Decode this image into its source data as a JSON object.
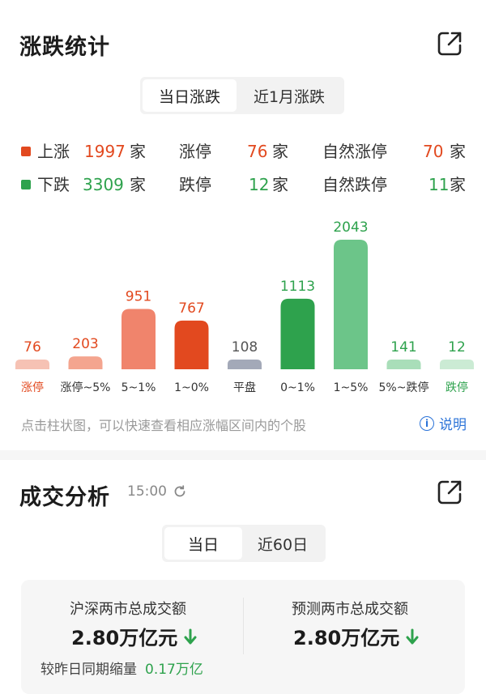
{
  "rise_fall": {
    "title": "涨跌统计",
    "tabs": [
      {
        "label": "当日涨跌",
        "active": true
      },
      {
        "label": "近1月涨跌",
        "active": false
      }
    ],
    "rows": [
      {
        "dir_label": "上涨",
        "dir_value": "1997",
        "limit_label": "涨停",
        "limit_value": "76",
        "nat_label": "自然涨停",
        "nat_value": "70",
        "unit": "家"
      },
      {
        "dir_label": "下跌",
        "dir_value": "3309",
        "limit_label": "跌停",
        "limit_value": "12",
        "nat_label": "自然跌停",
        "nat_value": "11",
        "unit": "家"
      }
    ],
    "hint": "点击柱状图，可以快速查看相应涨幅区间内的个股",
    "explain_label": "说明",
    "info_glyph": "i",
    "colors": {
      "up": "#e2491f",
      "down": "#2ea24d",
      "flat": "#a3a9b8"
    }
  },
  "chart_data": {
    "type": "bar",
    "categories": [
      "涨停",
      "涨停~5%",
      "5~1%",
      "1~0%",
      "平盘",
      "0~1%",
      "1~5%",
      "5%~跌停",
      "跌停"
    ],
    "values": [
      76,
      203,
      951,
      767,
      108,
      1113,
      2043,
      141,
      12
    ],
    "colors": [
      "#f6c2b4",
      "#f4a58f",
      "#f0846c",
      "#e2491f",
      "#a3a9b8",
      "#2ea24d",
      "#6cc589",
      "#a9deb9",
      "#cbebd4"
    ],
    "label_colors": [
      "#e2491f",
      "#333333",
      "#333333",
      "#333333",
      "#333333",
      "#333333",
      "#333333",
      "#333333",
      "#2ea24d"
    ],
    "value_colors": [
      "#e2491f",
      "#e2491f",
      "#e2491f",
      "#e2491f",
      "#555555",
      "#2ea24d",
      "#2ea24d",
      "#2ea24d",
      "#2ea24d"
    ],
    "ylim": [
      0,
      2043
    ]
  },
  "turnover": {
    "title": "成交分析",
    "time": "15:00",
    "tabs": [
      {
        "label": "当日",
        "active": true
      },
      {
        "label": "近60日",
        "active": false
      }
    ],
    "left_caption": "沪深两市总成交额",
    "left_value": "2.80万亿元",
    "right_caption": "预测两市总成交额",
    "right_value": "2.80万亿元",
    "compare_label": "较昨日同期缩量",
    "compare_value": "0.17万亿"
  }
}
